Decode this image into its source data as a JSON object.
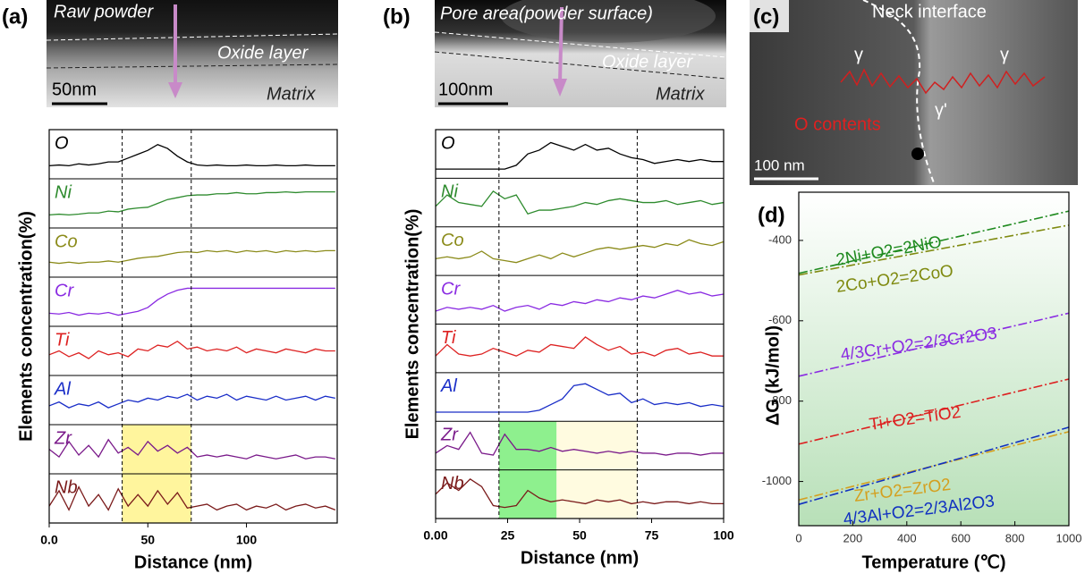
{
  "chart_data": [
    {
      "type": "profile",
      "panel_label": "(a)",
      "image_texts": {
        "top": "Raw powder",
        "oxide": "Oxide layer",
        "matrix": "Matrix",
        "scale_bar": "50nm"
      },
      "ylabel": "Elements concentration(%)",
      "xlabel": "Distance (nm)",
      "xlim": [
        0,
        146
      ],
      "xticks": [
        {
          "value": 0,
          "label": "0.0"
        },
        50,
        100
      ],
      "ylim": [
        0,
        1
      ],
      "dashed_lines": [
        37,
        72
      ],
      "highlights": [
        {
          "xlim": [
            37,
            72
          ],
          "color": "#fff59d"
        }
      ],
      "x": [
        0,
        5,
        10,
        15,
        20,
        25,
        30,
        35,
        40,
        45,
        50,
        55,
        60,
        65,
        70,
        75,
        80,
        85,
        90,
        95,
        100,
        105,
        110,
        115,
        120,
        125,
        130,
        135,
        140,
        145
      ],
      "series": [
        {
          "name": "O",
          "color": "#000000",
          "values": [
            0.2,
            0.22,
            0.2,
            0.25,
            0.22,
            0.25,
            0.3,
            0.3,
            0.4,
            0.5,
            0.6,
            0.75,
            0.65,
            0.45,
            0.3,
            0.22,
            0.2,
            0.22,
            0.2,
            0.2,
            0.22,
            0.2,
            0.2,
            0.22,
            0.2,
            0.2,
            0.22,
            0.2,
            0.2,
            0.2
          ]
        },
        {
          "name": "Ni",
          "color": "#2e8b2e",
          "values": [
            0.2,
            0.22,
            0.2,
            0.22,
            0.25,
            0.25,
            0.3,
            0.28,
            0.35,
            0.38,
            0.4,
            0.5,
            0.6,
            0.65,
            0.7,
            0.72,
            0.72,
            0.75,
            0.75,
            0.78,
            0.75,
            0.75,
            0.78,
            0.78,
            0.8,
            0.78,
            0.8,
            0.8,
            0.8,
            0.8
          ]
        },
        {
          "name": "Co",
          "color": "#8b8b1a",
          "values": [
            0.25,
            0.22,
            0.25,
            0.22,
            0.25,
            0.25,
            0.28,
            0.25,
            0.3,
            0.35,
            0.38,
            0.4,
            0.45,
            0.5,
            0.52,
            0.5,
            0.55,
            0.52,
            0.55,
            0.5,
            0.55,
            0.52,
            0.55,
            0.5,
            0.55,
            0.52,
            0.55,
            0.52,
            0.55,
            0.55
          ]
        },
        {
          "name": "Cr",
          "color": "#8a2be2",
          "values": [
            0.2,
            0.18,
            0.22,
            0.15,
            0.2,
            0.18,
            0.22,
            0.15,
            0.2,
            0.25,
            0.35,
            0.55,
            0.7,
            0.8,
            0.85,
            0.85,
            0.85,
            0.85,
            0.85,
            0.85,
            0.85,
            0.85,
            0.85,
            0.85,
            0.85,
            0.85,
            0.85,
            0.85,
            0.85,
            0.85
          ]
        },
        {
          "name": "Ti",
          "color": "#dd2222",
          "values": [
            0.4,
            0.5,
            0.35,
            0.45,
            0.3,
            0.5,
            0.4,
            0.45,
            0.35,
            0.55,
            0.5,
            0.65,
            0.6,
            0.75,
            0.55,
            0.6,
            0.5,
            0.55,
            0.5,
            0.6,
            0.45,
            0.55,
            0.5,
            0.45,
            0.55,
            0.5,
            0.45,
            0.55,
            0.5,
            0.5
          ]
        },
        {
          "name": "Al",
          "color": "#1a2ec8",
          "values": [
            0.35,
            0.45,
            0.3,
            0.4,
            0.35,
            0.45,
            0.3,
            0.4,
            0.5,
            0.45,
            0.55,
            0.5,
            0.6,
            0.55,
            0.65,
            0.5,
            0.6,
            0.55,
            0.65,
            0.5,
            0.6,
            0.55,
            0.5,
            0.6,
            0.5,
            0.55,
            0.6,
            0.5,
            0.6,
            0.55
          ]
        },
        {
          "name": "Zr",
          "color": "#7a1a8a",
          "values": [
            0.5,
            0.3,
            0.7,
            0.35,
            0.6,
            0.3,
            0.75,
            0.4,
            0.55,
            0.35,
            0.7,
            0.45,
            0.6,
            0.4,
            0.55,
            0.3,
            0.35,
            0.3,
            0.35,
            0.3,
            0.25,
            0.35,
            0.3,
            0.25,
            0.3,
            0.35,
            0.25,
            0.3,
            0.3,
            0.25
          ]
        },
        {
          "name": "Nb",
          "color": "#7a1a1a",
          "values": [
            0.3,
            0.7,
            0.2,
            0.8,
            0.3,
            0.6,
            0.2,
            0.75,
            0.3,
            0.6,
            0.3,
            0.7,
            0.35,
            0.65,
            0.25,
            0.3,
            0.35,
            0.2,
            0.3,
            0.35,
            0.2,
            0.3,
            0.25,
            0.35,
            0.2,
            0.3,
            0.35,
            0.25,
            0.3,
            0.2
          ]
        }
      ]
    },
    {
      "type": "profile",
      "panel_label": "(b)",
      "image_texts": {
        "top": "Pore area(powder surface)",
        "oxide": "Oxide layer",
        "matrix": "Matrix",
        "scale_bar": "100nm"
      },
      "ylabel": "Elements concentration(%)",
      "xlabel": "Distance (nm)",
      "xlim": [
        0,
        100
      ],
      "xticks": [
        {
          "value": 0,
          "label": "0.00"
        },
        25,
        50,
        75,
        100
      ],
      "ylim": [
        0,
        1
      ],
      "dashed_lines": [
        22,
        70
      ],
      "highlights": [
        {
          "xlim": [
            22,
            42
          ],
          "color": "#8ef08e"
        },
        {
          "xlim": [
            42,
            70
          ],
          "color": "#fffbe0"
        }
      ],
      "x": [
        0,
        4,
        8,
        12,
        16,
        20,
        24,
        28,
        32,
        36,
        40,
        44,
        48,
        52,
        56,
        60,
        64,
        68,
        72,
        76,
        80,
        84,
        88,
        92,
        96,
        100
      ],
      "series": [
        {
          "name": "O",
          "color": "#000000",
          "values": [
            0.1,
            0.1,
            0.1,
            0.1,
            0.1,
            0.1,
            0.1,
            0.2,
            0.5,
            0.6,
            0.8,
            0.7,
            0.6,
            0.75,
            0.6,
            0.65,
            0.5,
            0.4,
            0.35,
            0.25,
            0.3,
            0.35,
            0.3,
            0.35,
            0.3,
            0.3
          ]
        },
        {
          "name": "Ni",
          "color": "#2e8b2e",
          "values": [
            0.4,
            0.7,
            0.5,
            0.45,
            0.4,
            0.8,
            0.6,
            0.7,
            0.2,
            0.3,
            0.3,
            0.35,
            0.4,
            0.5,
            0.45,
            0.55,
            0.6,
            0.55,
            0.5,
            0.5,
            0.55,
            0.45,
            0.5,
            0.55,
            0.45,
            0.5
          ]
        },
        {
          "name": "Co",
          "color": "#8b8b1a",
          "values": [
            0.3,
            0.35,
            0.3,
            0.35,
            0.5,
            0.3,
            0.25,
            0.2,
            0.3,
            0.4,
            0.3,
            0.45,
            0.35,
            0.45,
            0.55,
            0.6,
            0.55,
            0.6,
            0.65,
            0.6,
            0.7,
            0.65,
            0.8,
            0.7,
            0.65,
            0.75
          ]
        },
        {
          "name": "Cr",
          "color": "#8a2be2",
          "values": [
            0.2,
            0.3,
            0.25,
            0.3,
            0.25,
            0.35,
            0.2,
            0.3,
            0.35,
            0.25,
            0.4,
            0.35,
            0.45,
            0.4,
            0.5,
            0.45,
            0.55,
            0.5,
            0.6,
            0.55,
            0.65,
            0.75,
            0.65,
            0.7,
            0.6,
            0.65
          ]
        },
        {
          "name": "Ti",
          "color": "#dd2222",
          "values": [
            0.3,
            0.6,
            0.35,
            0.3,
            0.35,
            0.5,
            0.4,
            0.3,
            0.45,
            0.4,
            0.6,
            0.55,
            0.5,
            0.8,
            0.6,
            0.45,
            0.55,
            0.35,
            0.4,
            0.3,
            0.45,
            0.5,
            0.35,
            0.4,
            0.3,
            0.3
          ]
        },
        {
          "name": "Al",
          "color": "#1a2ec8",
          "values": [
            0.1,
            0.1,
            0.1,
            0.1,
            0.1,
            0.1,
            0.1,
            0.1,
            0.1,
            0.15,
            0.3,
            0.45,
            0.8,
            0.85,
            0.7,
            0.55,
            0.6,
            0.35,
            0.45,
            0.3,
            0.35,
            0.3,
            0.35,
            0.25,
            0.3,
            0.25
          ]
        },
        {
          "name": "Zr",
          "color": "#7a1a8a",
          "values": [
            0.3,
            0.5,
            0.4,
            0.85,
            0.3,
            0.25,
            0.8,
            0.4,
            0.4,
            0.35,
            0.45,
            0.35,
            0.4,
            0.35,
            0.3,
            0.35,
            0.3,
            0.35,
            0.3,
            0.3,
            0.25,
            0.3,
            0.3,
            0.25,
            0.3,
            0.3
          ]
        },
        {
          "name": "Nb",
          "color": "#7a1a1a",
          "values": [
            0.5,
            0.8,
            0.6,
            0.9,
            0.7,
            0.2,
            0.15,
            0.2,
            0.6,
            0.4,
            0.3,
            0.35,
            0.3,
            0.25,
            0.35,
            0.3,
            0.35,
            0.25,
            0.3,
            0.25,
            0.3,
            0.3,
            0.25,
            0.3,
            0.25,
            0.25
          ]
        }
      ]
    },
    {
      "type": "line",
      "panel_label": "(d)",
      "xlabel": "Temperature (℃)",
      "ylabel": "ΔG (kJ/mol)",
      "x": [
        0,
        1000
      ],
      "xlim": [
        0,
        1000
      ],
      "xticks": [
        0,
        200,
        400,
        600,
        800,
        1000
      ],
      "ylim": [
        -1110,
        -280
      ],
      "yticks": [
        -400,
        -600,
        -800,
        -1000
      ],
      "series": [
        {
          "name": "2Ni+O2=2NiO",
          "color": "#1e8a1e",
          "values": [
            -482,
            -327
          ]
        },
        {
          "name": "2Co+O2=2CoO",
          "color": "#7f8a10",
          "values": [
            -486,
            -362
          ]
        },
        {
          "name": "4/3Cr+O2=2/3Cr2O3",
          "color": "#8a2be2",
          "values": [
            -738,
            -581
          ]
        },
        {
          "name": "Ti+O2=TiO2",
          "color": "#dd2020",
          "values": [
            -907,
            -745
          ]
        },
        {
          "name": "Zr+O2=ZrO2",
          "color": "#d4a020",
          "values": [
            -1046,
            -876
          ]
        },
        {
          "name": "4/3Al+O2=2/3Al2O3",
          "color": "#1030c0",
          "values": [
            -1057,
            -865
          ]
        }
      ]
    }
  ],
  "panel_c": {
    "panel_label": "(c)",
    "neck": "Neck interface",
    "gamma_left": "γ",
    "gamma_right": "γ",
    "gamma_prime": "γ'",
    "o_contents": "O contents",
    "scale_bar": "100 nm"
  }
}
